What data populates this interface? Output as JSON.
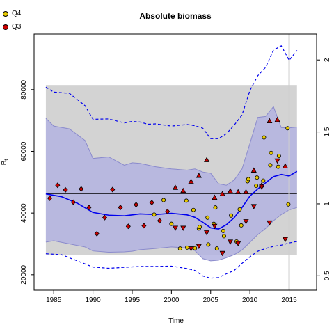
{
  "chart_data": {
    "type": "scatter",
    "title": "Absolute biomass",
    "xlabel": "Time",
    "ylabel": "B",
    "ylabel_subscript": "t",
    "xlim": [
      1982.5,
      2018.5
    ],
    "ylim": [
      15000,
      98000
    ],
    "ylim_right": [
      0.4,
      2.18
    ],
    "xticks": [
      "1985",
      "1990",
      "1995",
      "2000",
      "2005",
      "2010",
      "2015"
    ],
    "xtick_values": [
      1985,
      1990,
      1995,
      2000,
      2005,
      2010,
      2015
    ],
    "yticks": [
      "20000",
      "40000",
      "60000",
      "80000"
    ],
    "ytick_values": [
      20000,
      40000,
      60000,
      80000
    ],
    "yticks_right": [
      "0.5",
      "1",
      "1.5",
      "2"
    ],
    "ytick_right_values": [
      0.5,
      1,
      1.5,
      2
    ],
    "reference_line_y": 46300,
    "vertical_line_x": 2015,
    "gray_band": {
      "x": [
        1984,
        2016
      ],
      "y": [
        26300,
        81500
      ]
    },
    "colors": {
      "q4": "#e6c800",
      "q3": "#cc0000",
      "median": "#0000ee",
      "ci_fill": "#b3b3e0",
      "ci_line": "#8a8acc",
      "gray_band": "#d3d3d3",
      "reference_line": "#000000",
      "vertical_line": "#cfcfcf"
    },
    "legend": [
      {
        "label": "Q4",
        "color": "#e6c800",
        "shape": "circle"
      },
      {
        "label": "Q3",
        "color": "#cc0000",
        "shape": "circle"
      }
    ],
    "series": [
      {
        "name": "Q4",
        "marker": "circle",
        "color": "#e6c800",
        "x": [
          1997.8,
          1999.0,
          2000.0,
          2001.1,
          2001.9,
          2002.0,
          2002.8,
          2003.0,
          2003.5,
          2003.6,
          2004.6,
          2004.7,
          2005.4,
          2005.6,
          2005.8,
          2006.6,
          2006.7,
          2007.6,
          2008.3,
          2008.7,
          2008.9,
          2009.7,
          2009.8,
          2010.8,
          2010.9,
          2011.7,
          2011.8,
          2012.6,
          2012.7,
          2013.6,
          2013.7,
          2014.8,
          2014.9
        ],
        "y": [
          39500,
          44200,
          36500,
          28500,
          44000,
          28800,
          41000,
          28600,
          35000,
          35500,
          38500,
          29800,
          36500,
          41800,
          28500,
          34200,
          32500,
          39200,
          30800,
          41200,
          36000,
          50300,
          51000,
          48800,
          51500,
          50500,
          64500,
          55500,
          59500,
          55000,
          58500,
          67500,
          42800
        ]
      },
      {
        "name": "Q3",
        "marker": "diamond",
        "color": "#cc0000",
        "x": [
          1984.5,
          1985.5,
          1986.5,
          1987.5,
          1988.5,
          1989.5,
          1990.5,
          1991.5,
          1992.5,
          1993.5,
          1994.5,
          1995.5,
          1996.5,
          1997.5,
          1998.5,
          1999.5
        ],
        "y": [
          44800,
          49000,
          47500,
          43500,
          47800,
          41800,
          33300,
          38500,
          47600,
          41800,
          35700,
          42700,
          35900,
          43400,
          37500,
          40500
        ]
      },
      {
        "name": "Q3",
        "marker": "triangle",
        "color": "#cc0000",
        "x": [
          2000.5,
          2001.5,
          2002.5,
          2003.5,
          2004.5,
          2005.5,
          2006.5,
          2007.5,
          2008.5,
          2009.5,
          2010.5,
          2011.5,
          2012.5,
          2013.5,
          2014.5
        ],
        "y": [
          48200,
          47200,
          50200,
          52100,
          57200,
          45000,
          46200,
          47100,
          46800,
          46800,
          53800,
          49000,
          69800,
          70200,
          55200
        ]
      },
      {
        "name": "Q3",
        "marker": "down-triangle",
        "color": "#cc0000",
        "x": [
          2000.5,
          2001.5,
          2002.5,
          2003.5,
          2004.5,
          2005.5,
          2006.5,
          2007.5,
          2008.5,
          2009.5,
          2010.5,
          2011.5,
          2012.5,
          2013.5,
          2014.5
        ],
        "y": [
          35200,
          35200,
          28500,
          29300,
          33700,
          35800,
          27000,
          30700,
          30200,
          37300,
          42200,
          48500,
          36900,
          57000,
          31500
        ]
      }
    ],
    "median_line": {
      "x": [
        1984,
        1986,
        1988,
        1990,
        1992,
        1994,
        1996,
        1998,
        2000,
        2002,
        2003,
        2004,
        2005,
        2006,
        2007,
        2008,
        2009,
        2010,
        2011,
        2012,
        2013,
        2014,
        2015,
        2016
      ],
      "y": [
        46200,
        45300,
        43200,
        40200,
        39300,
        39100,
        39700,
        39500,
        39900,
        39400,
        38600,
        37000,
        35200,
        34800,
        36200,
        38500,
        41800,
        45500,
        47800,
        49800,
        51800,
        52500,
        52000,
        53500
      ]
    },
    "ci_band": {
      "x": [
        1984,
        1985,
        1987,
        1989,
        1990,
        1992,
        1994,
        1995,
        1996,
        1998,
        2000,
        2002,
        2003,
        2004,
        2005,
        2006,
        2007,
        2008,
        2009,
        2010,
        2011,
        2012,
        2013,
        2014,
        2015,
        2016
      ],
      "lower": [
        30600,
        31000,
        30000,
        29000,
        27700,
        27300,
        27400,
        27600,
        28100,
        28500,
        29000,
        28700,
        27800,
        25200,
        24500,
        24700,
        25500,
        26500,
        28000,
        30500,
        33000,
        35000,
        37500,
        39500,
        41000,
        41800
      ],
      "upper": [
        70700,
        68200,
        67300,
        63500,
        57700,
        58200,
        55500,
        56300,
        56100,
        55000,
        54300,
        53900,
        54300,
        53300,
        52900,
        49500,
        49000,
        50700,
        54300,
        62500,
        71000,
        71300,
        74500,
        67700,
        67600,
        67900
      ]
    },
    "outer_upper": {
      "x": [
        1984,
        1985,
        1987,
        1989,
        1990,
        1992,
        1994,
        1995,
        1996,
        1997,
        1998,
        2000,
        2002,
        2003,
        2004,
        2005,
        2006,
        2007,
        2008,
        2009,
        2010,
        2011,
        2012,
        2013,
        2014,
        2015,
        2016
      ],
      "y": [
        80800,
        79200,
        78800,
        74800,
        70400,
        70500,
        69200,
        69700,
        69500,
        68800,
        68900,
        68200,
        68700,
        68300,
        67500,
        64100,
        64100,
        65700,
        68500,
        71800,
        79700,
        84500,
        87200,
        92800,
        94200,
        89500,
        92700
      ]
    },
    "outer_lower": {
      "x": [
        1984,
        1986,
        1988,
        1990,
        1992,
        1994,
        1996,
        1998,
        2000,
        2002,
        2003,
        2004,
        2005,
        2006,
        2007,
        2008,
        2009,
        2010,
        2011,
        2012,
        2013,
        2014,
        2015,
        2016
      ],
      "y": [
        26800,
        26500,
        24500,
        22500,
        22100,
        22400,
        22700,
        22700,
        22800,
        22000,
        21400,
        19600,
        18900,
        19100,
        20300,
        21400,
        23700,
        25800,
        27600,
        28500,
        29200,
        29600,
        30300,
        30800
      ]
    }
  }
}
